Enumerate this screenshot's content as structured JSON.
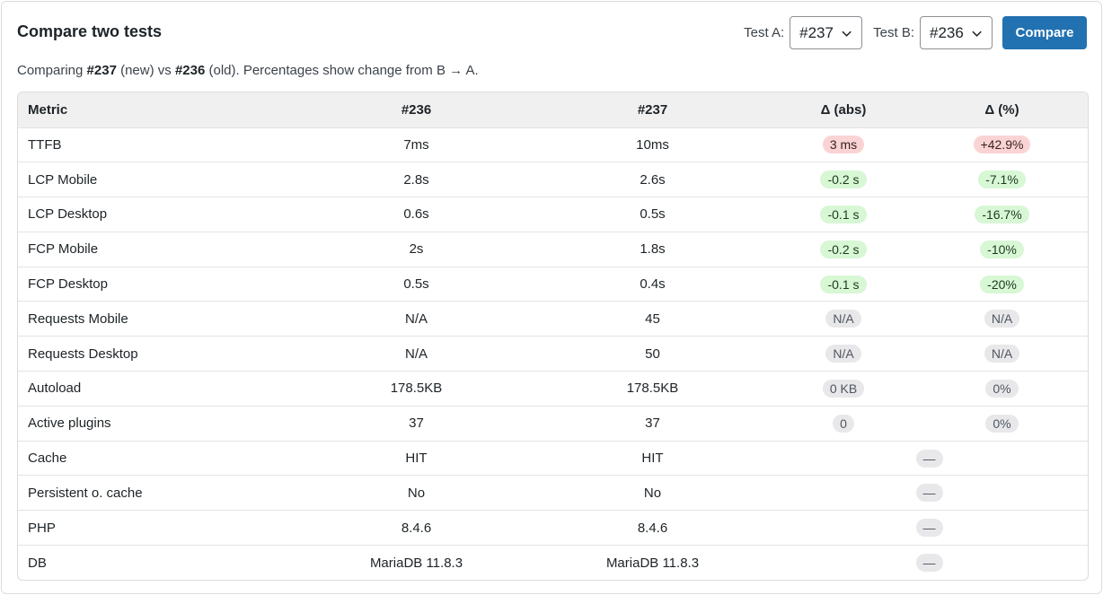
{
  "header": {
    "title": "Compare two tests",
    "test_a_label": "Test A:",
    "test_a_value": "#237",
    "test_b_label": "Test B:",
    "test_b_value": "#236",
    "compare_label": "Compare"
  },
  "summary": {
    "prefix": "Comparing ",
    "a_id": "#237",
    "a_tag": " (new) vs ",
    "b_id": "#236",
    "b_tag": " (old). Percentages show change from B → A."
  },
  "table": {
    "headers": [
      "Metric",
      "#236",
      "#237",
      "Δ (abs)",
      "Δ (%)"
    ],
    "rows": [
      {
        "metric": "TTFB",
        "b": "7ms",
        "a": "10ms",
        "abs": "3 ms",
        "pct": "+42.9%",
        "status": "bad"
      },
      {
        "metric": "LCP Mobile",
        "b": "2.8s",
        "a": "2.6s",
        "abs": "-0.2 s",
        "pct": "-7.1%",
        "status": "good"
      },
      {
        "metric": "LCP Desktop",
        "b": "0.6s",
        "a": "0.5s",
        "abs": "-0.1 s",
        "pct": "-16.7%",
        "status": "good"
      },
      {
        "metric": "FCP Mobile",
        "b": "2s",
        "a": "1.8s",
        "abs": "-0.2 s",
        "pct": "-10%",
        "status": "good"
      },
      {
        "metric": "FCP Desktop",
        "b": "0.5s",
        "a": "0.4s",
        "abs": "-0.1 s",
        "pct": "-20%",
        "status": "good"
      },
      {
        "metric": "Requests Mobile",
        "b": "N/A",
        "a": "45",
        "abs": "N/A",
        "pct": "N/A",
        "status": "neutral"
      },
      {
        "metric": "Requests Desktop",
        "b": "N/A",
        "a": "50",
        "abs": "N/A",
        "pct": "N/A",
        "status": "neutral"
      },
      {
        "metric": "Autoload",
        "b": "178.5KB",
        "a": "178.5KB",
        "abs": "0 KB",
        "pct": "0%",
        "status": "neutral"
      },
      {
        "metric": "Active plugins",
        "b": "37",
        "a": "37",
        "abs": "0",
        "pct": "0%",
        "status": "neutral"
      },
      {
        "metric": "Cache",
        "b": "HIT",
        "a": "HIT",
        "dash": "—",
        "status": "neutral"
      },
      {
        "metric": "Persistent o. cache",
        "b": "No",
        "a": "No",
        "dash": "—",
        "status": "neutral"
      },
      {
        "metric": "PHP",
        "b": "8.4.6",
        "a": "8.4.6",
        "dash": "—",
        "status": "neutral"
      },
      {
        "metric": "DB",
        "b": "MariaDB 11.8.3",
        "a": "MariaDB 11.8.3",
        "dash": "—",
        "status": "neutral"
      }
    ]
  },
  "icons": {
    "select_caret": "chevron-down-icon"
  },
  "colors": {
    "accent": "#2271b1",
    "bad": "#fad4d4",
    "good": "#d7f7d5",
    "neutral": "#e8e8eb"
  }
}
